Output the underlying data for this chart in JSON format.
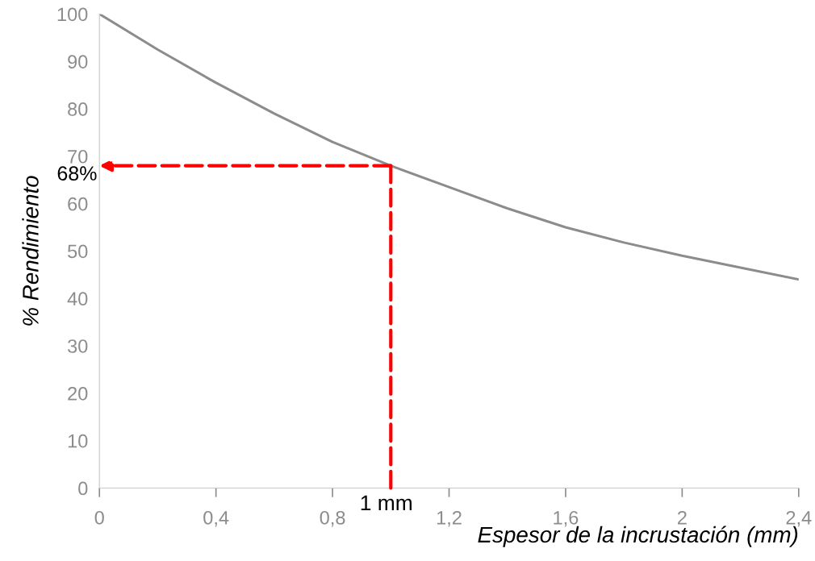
{
  "chart_data": {
    "type": "line",
    "xlabel": "Espesor de la incrustación (mm)",
    "ylabel": "% Rendimiento",
    "x": [
      0,
      0.2,
      0.4,
      0.6,
      0.8,
      1.0,
      1.2,
      1.4,
      1.6,
      1.8,
      2.0,
      2.2,
      2.4
    ],
    "series": [
      {
        "color": "#8c8c8c",
        "values": [
          100,
          92.5,
          85.5,
          79,
          73,
          68,
          63.5,
          59,
          55,
          51.8,
          49,
          46.5,
          44
        ]
      }
    ],
    "xlim": [
      0,
      2.4
    ],
    "ylim": [
      0,
      100
    ],
    "xticks": [
      {
        "value": 0,
        "label": "0"
      },
      {
        "value": 0.4,
        "label": "0,4"
      },
      {
        "value": 0.8,
        "label": "0,8"
      },
      {
        "value": 1.2,
        "label": "1,2"
      },
      {
        "value": 1.6,
        "label": "1,6"
      },
      {
        "value": 2,
        "label": "2"
      },
      {
        "value": 2.4,
        "label": "2,4"
      }
    ],
    "yticks": [
      0,
      10,
      20,
      30,
      40,
      50,
      60,
      70,
      80,
      90,
      100
    ],
    "annotations": [
      {
        "text": "68%",
        "x": 1.0,
        "y": 68
      },
      {
        "text": "1 mm",
        "x": 1.0,
        "y": 68
      }
    ],
    "grid": false,
    "legend": false,
    "marker": "none",
    "line_style": "solid"
  }
}
